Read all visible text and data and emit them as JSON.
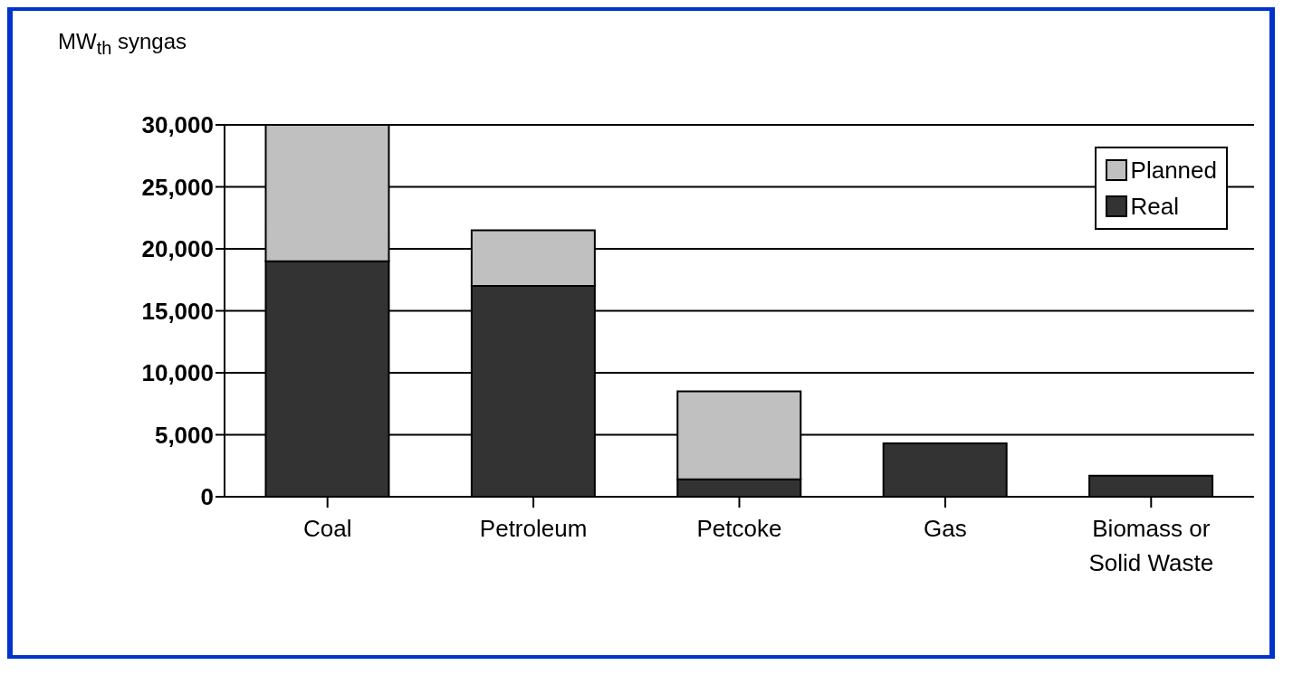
{
  "chart_data": {
    "type": "bar",
    "ylabel": "MW$_{th}$ syngas",
    "categories": [
      "Coal",
      "Petroleum",
      "Petcoke",
      "Gas",
      "Biomass or Solid Waste"
    ],
    "stacked": true,
    "series": [
      {
        "name": "Real",
        "color": "#333333",
        "values": [
          19000,
          17000,
          1400,
          4300,
          1700
        ]
      },
      {
        "name": "Planned",
        "color": "#c0c0c0",
        "values": [
          11000,
          4500,
          7100,
          null,
          null
        ]
      }
    ],
    "ylim": [
      0,
      30000
    ],
    "yticks": [
      {
        "value": 0,
        "label": "0"
      },
      {
        "value": 5000,
        "label": "5,000"
      },
      {
        "value": 10000,
        "label": "10,000"
      },
      {
        "value": 15000,
        "label": "15,000"
      },
      {
        "value": 20000,
        "label": "20,000"
      },
      {
        "value": 25000,
        "label": "25,000"
      },
      {
        "value": 30000,
        "label": "30,000"
      }
    ],
    "grid": "y",
    "legend": "top right"
  }
}
